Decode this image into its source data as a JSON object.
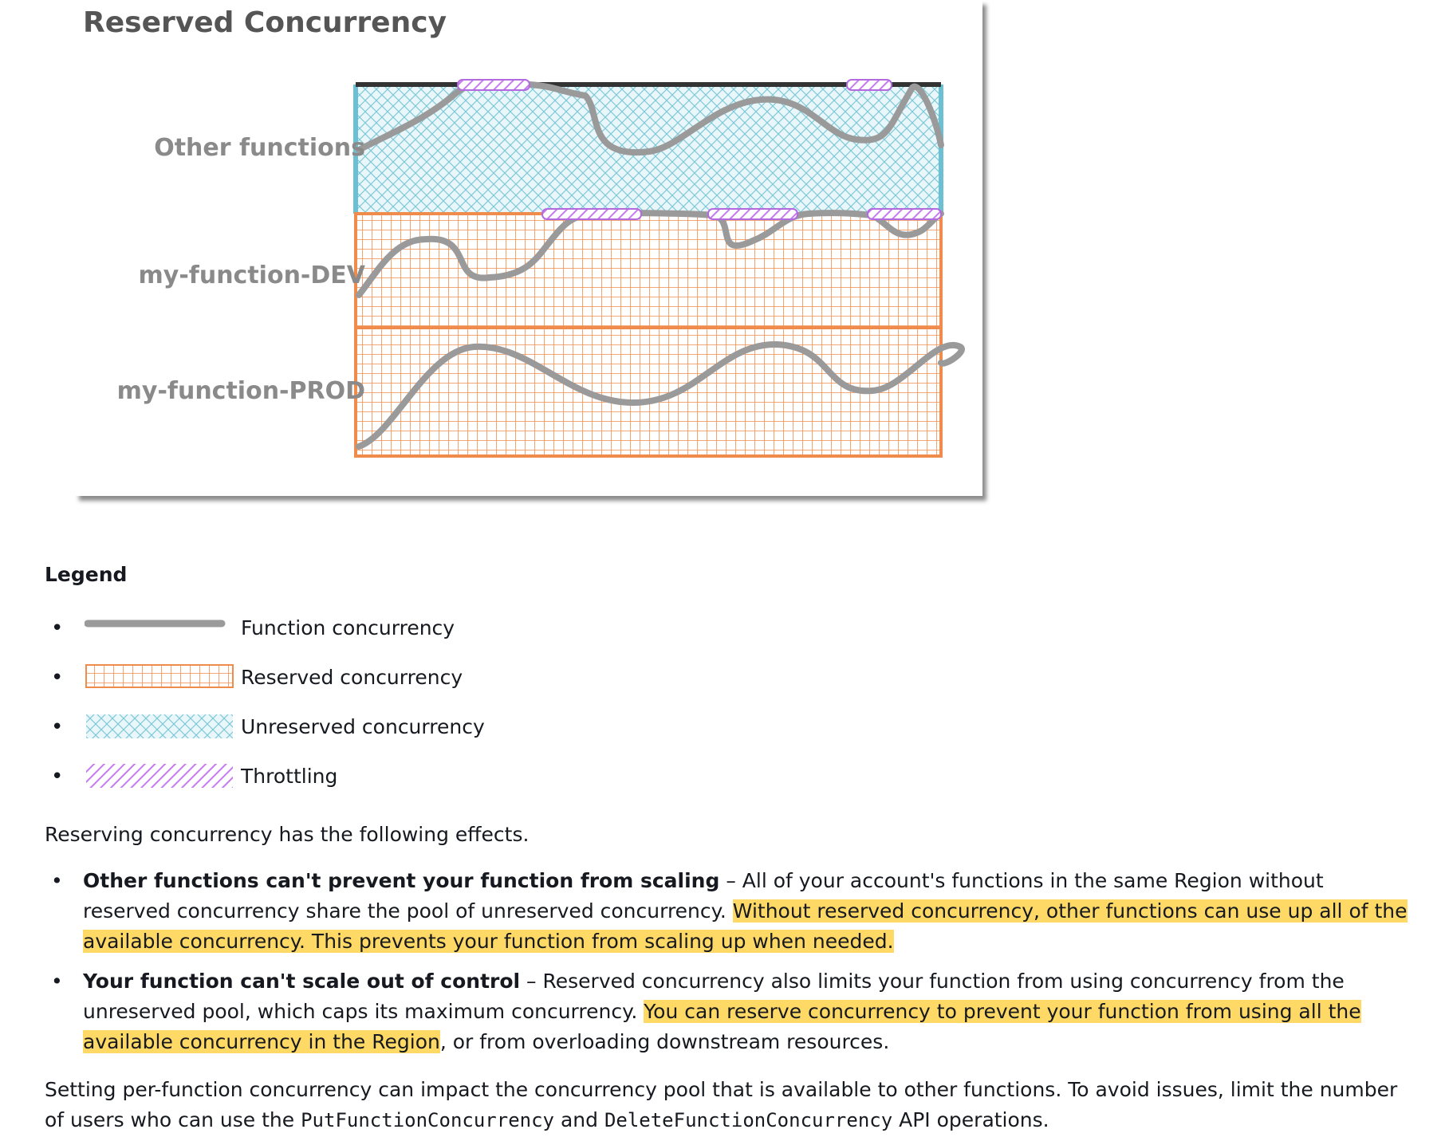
{
  "figure": {
    "title": "Reserved Concurrency",
    "rows": [
      {
        "label": "Other functions"
      },
      {
        "label": "my-function-DEV"
      },
      {
        "label": "my-function-PROD"
      }
    ],
    "colors": {
      "reserved": "#f08c4b",
      "unreserved": "#7fc8d8",
      "throttling": "#c77bf0",
      "function_line": "#9a9a9a",
      "top_bar": "#333333"
    }
  },
  "legend": {
    "title": "Legend",
    "items": [
      {
        "label": "Function concurrency",
        "icon": "function-concurrency-line"
      },
      {
        "label": "Reserved concurrency",
        "icon": "reserved-grid-pattern"
      },
      {
        "label": "Unreserved concurrency",
        "icon": "unreserved-crosshatch-pattern"
      },
      {
        "label": "Throttling",
        "icon": "throttling-diagonal-pattern"
      }
    ]
  },
  "intro": "Reserving concurrency has the following effects.",
  "effects": [
    {
      "bold": "Other functions can't prevent your function from scaling",
      "text": " – All of your account's functions in the same Region without reserved concurrency share the pool of unreserved concurrency. ",
      "highlight": "Without reserved concurrency, other functions can use up all of the available concurrency. This prevents your function from scaling up when needed.",
      "after": ""
    },
    {
      "bold": "Your function can't scale out of control",
      "text": " – Reserved concurrency also limits your function from using concurrency from the unreserved pool, which caps its maximum concurrency. ",
      "highlight": "You can reserve concurrency to prevent your function from using all the available concurrency in the Region",
      "after": ", or from overloading downstream resources."
    }
  ],
  "closing": {
    "before": "Setting per-function concurrency can impact the concurrency pool that is available to other functions. To avoid issues, limit the number of users who can use the ",
    "code1": "PutFunctionConcurrency",
    "middle": " and ",
    "code2": "DeleteFunctionConcurrency",
    "after": " API operations."
  }
}
